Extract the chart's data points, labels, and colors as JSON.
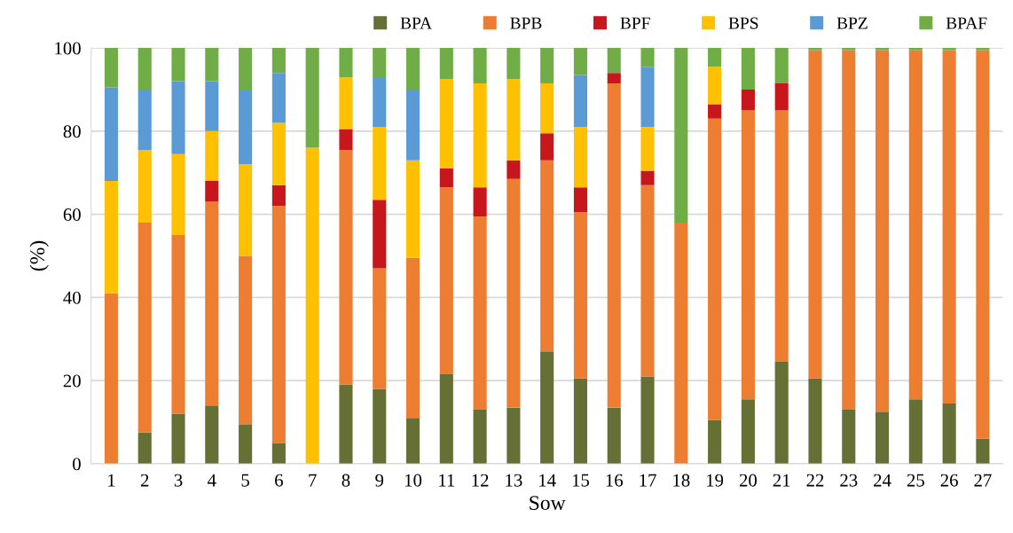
{
  "chart_data": {
    "type": "bar",
    "stacked": true,
    "xlabel": "Sow",
    "ylabel": "(%)",
    "categories": [
      "1",
      "2",
      "3",
      "4",
      "5",
      "6",
      "7",
      "8",
      "9",
      "10",
      "11",
      "12",
      "13",
      "14",
      "15",
      "16",
      "17",
      "18",
      "19",
      "20",
      "21",
      "22",
      "23",
      "24",
      "25",
      "26",
      "27"
    ],
    "series": [
      {
        "name": "BPA",
        "color": "#667034",
        "values": [
          0,
          7.5,
          12,
          14,
          9.5,
          5,
          0,
          19,
          18,
          11,
          21.5,
          13,
          13.5,
          27,
          20.5,
          13.5,
          21,
          0,
          10.5,
          15.5,
          24.5,
          20.5,
          13,
          12.5,
          15.5,
          14.5,
          6
        ]
      },
      {
        "name": "BPB",
        "color": "#ed7d31",
        "values": [
          41,
          50.5,
          43,
          49,
          40.5,
          57,
          0,
          56.5,
          29,
          38.5,
          45,
          46.5,
          55,
          46,
          40,
          78,
          46,
          58,
          72.5,
          69.5,
          60.5,
          79,
          86.5,
          87,
          84,
          85,
          93.5
        ]
      },
      {
        "name": "BPF",
        "color": "#c8161d",
        "values": [
          0,
          0,
          0,
          5,
          0,
          5,
          0,
          5,
          16.5,
          0,
          4.5,
          7,
          4.5,
          6.5,
          6,
          2.5,
          3.5,
          0,
          3.5,
          5,
          6.5,
          0,
          0,
          0,
          0,
          0,
          0
        ]
      },
      {
        "name": "BPS",
        "color": "#ffc000",
        "values": [
          27,
          17.5,
          19.5,
          12,
          22,
          15,
          76,
          12.5,
          17.5,
          23.5,
          21.5,
          25,
          19.5,
          12,
          14.5,
          0,
          10.5,
          0,
          9,
          0,
          0,
          0,
          0,
          0,
          0,
          0,
          0
        ]
      },
      {
        "name": "BPZ",
        "color": "#5b9bd5",
        "values": [
          22.5,
          14.5,
          17.5,
          12,
          18,
          12,
          0,
          0,
          12,
          17,
          0,
          0,
          0,
          0,
          12.5,
          0,
          14.5,
          0,
          0,
          0,
          0,
          0,
          0,
          0,
          0,
          0,
          0
        ]
      },
      {
        "name": "BPAF",
        "color": "#70ad47",
        "values": [
          9.5,
          10,
          8,
          8,
          10,
          6,
          24,
          7,
          7,
          10,
          7.5,
          8.5,
          7.5,
          8.5,
          6.5,
          6,
          4.5,
          42,
          4.5,
          10,
          8.5,
          0.5,
          0.5,
          0.5,
          0.5,
          0.5,
          0.5
        ]
      }
    ],
    "ylim": [
      0,
      100
    ],
    "yticks": [
      0,
      20,
      40,
      60,
      80,
      100
    ],
    "grid": "y",
    "legend": "top right"
  }
}
